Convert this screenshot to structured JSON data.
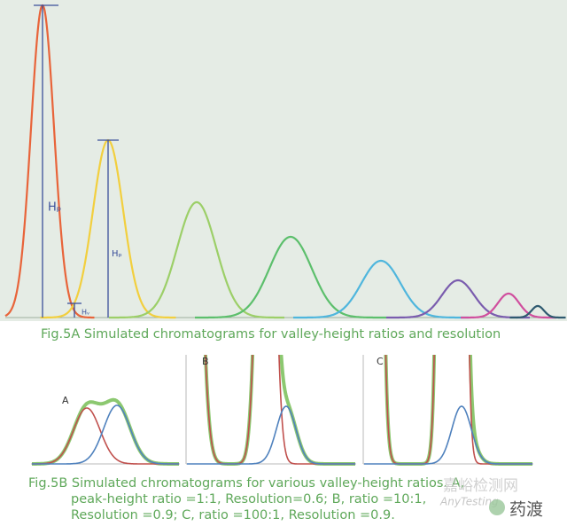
{
  "figure_a": {
    "labels": {
      "peak_height": "Hₚ",
      "peak_height_2": "Hₚ",
      "valley_height": "Hᵥ"
    },
    "caption": "Fig.5A Simulated chromatograms for valley-height ratios and resolution"
  },
  "figure_b": {
    "panels": [
      "A",
      "B",
      "C"
    ],
    "caption": [
      "Fig.5B Simulated chromatograms for various valley-height ratios. A,",
      "peak-height ratio =1:1, Resolution=0.6; B, ratio =10:1,",
      "Resolution =0.9; C, ratio =100:1, Resolution =0.9."
    ]
  },
  "watermark": {
    "site": "嘉峪检测网",
    "site_en": "AnyTesting",
    "brand": "药渡"
  }
}
